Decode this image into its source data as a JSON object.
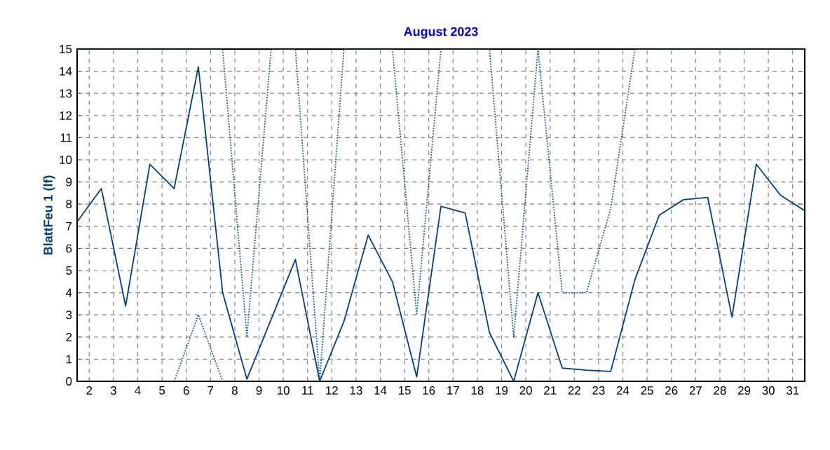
{
  "chart_data": {
    "type": "line",
    "title": "August 2023",
    "ylabel": "BlattFeu 1  (lf)",
    "x": [
      1.5,
      2.5,
      3.5,
      4.5,
      5.5,
      6.5,
      7.5,
      8.5,
      9.5,
      10.5,
      11.5,
      12.5,
      13.5,
      14.5,
      15.5,
      16.5,
      17.5,
      18.5,
      19.5,
      20.5,
      21.5,
      22.5,
      23.5,
      24.5,
      25.5,
      26.5,
      27.5,
      28.5,
      29.5,
      30.5,
      31.5
    ],
    "series": [
      {
        "color": "#003f7f",
        "line_style": "solid",
        "values": [
          7.2,
          8.7,
          3.4,
          9.8,
          8.7,
          14.2,
          4.0,
          0.1,
          2.8,
          5.5,
          0,
          2.7,
          6.6,
          4.5,
          0.2,
          7.9,
          7.6,
          2.2,
          0,
          4.0,
          0.6,
          0.5,
          0.45,
          4.6,
          7.5,
          8.2,
          8.3,
          2.9,
          9.8,
          8.4,
          7.7
        ]
      },
      {
        "color": "#005fa0",
        "line_style": "dotted",
        "values": [
          15,
          15,
          15,
          15,
          15,
          15,
          15,
          2,
          15,
          15,
          0,
          15,
          15,
          15,
          3,
          15,
          15,
          15,
          2,
          15,
          4,
          4,
          7.8,
          15,
          15,
          15,
          15,
          15,
          15,
          15,
          15
        ]
      },
      {
        "color": "#005fa0",
        "line_style": "dotted",
        "values": [
          null,
          null,
          null,
          null,
          0,
          3,
          0,
          null,
          null,
          null,
          null,
          null,
          null,
          null,
          null,
          null,
          null,
          null,
          null,
          null,
          null,
          null,
          null,
          null,
          null,
          null,
          null,
          null,
          null,
          null,
          null
        ]
      }
    ],
    "xlim": [
      1.5,
      31.5
    ],
    "ylim": [
      0,
      15
    ],
    "xticks": [
      2,
      3,
      4,
      5,
      6,
      7,
      8,
      9,
      10,
      11,
      12,
      13,
      14,
      15,
      16,
      17,
      18,
      19,
      20,
      21,
      22,
      23,
      24,
      25,
      26,
      27,
      28,
      29,
      30,
      31
    ],
    "yticks": [
      0,
      1,
      2,
      3,
      4,
      5,
      6,
      7,
      8,
      9,
      10,
      11,
      12,
      13,
      14,
      15
    ],
    "grid": true,
    "marker": "none"
  }
}
